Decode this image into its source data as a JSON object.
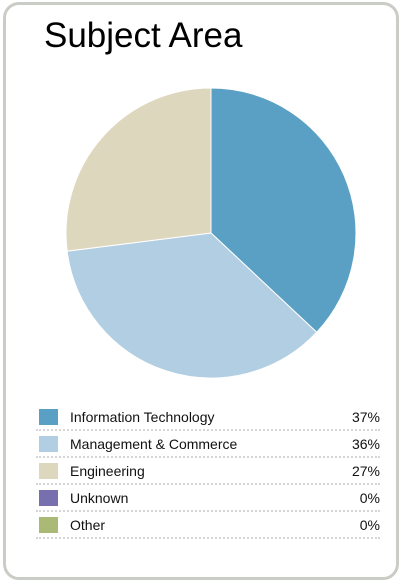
{
  "title": "Subject Area",
  "chart_data": {
    "type": "pie",
    "title": "Subject Area",
    "slices": [
      {
        "label": "Information Technology",
        "value": 37,
        "display": "37%",
        "color": "#5aa0c4"
      },
      {
        "label": "Management & Commerce",
        "value": 36,
        "display": "36%",
        "color": "#b2cee2"
      },
      {
        "label": "Engineering",
        "value": 27,
        "display": "27%",
        "color": "#ddd7bd"
      },
      {
        "label": "Unknown",
        "value": 0,
        "display": "0%",
        "color": "#7870ae"
      },
      {
        "label": "Other",
        "value": 0,
        "display": "0%",
        "color": "#aab975"
      }
    ],
    "legend_placement": "bottom"
  }
}
